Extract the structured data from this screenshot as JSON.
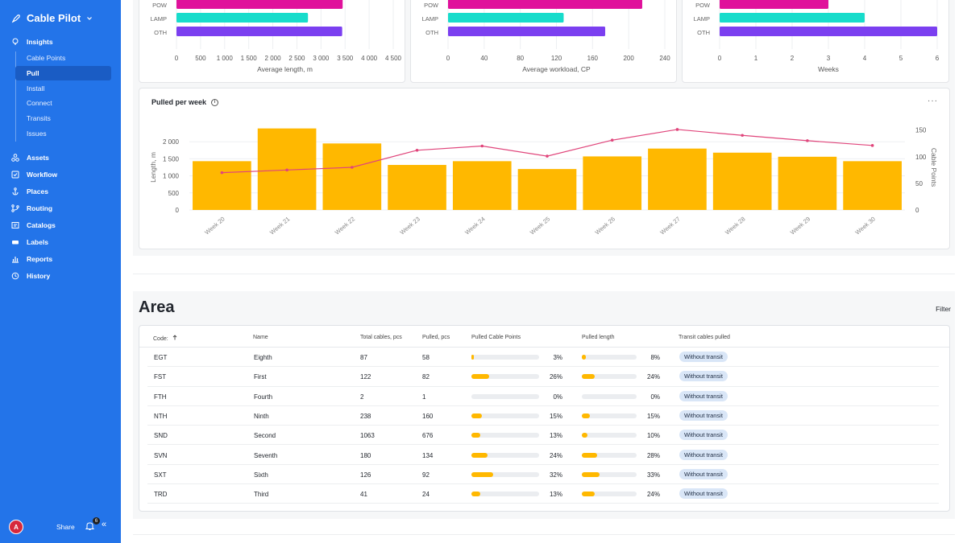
{
  "app": {
    "name": "Cable Pilot"
  },
  "sidebar": {
    "sections": [
      {
        "label": "Insights",
        "icon": "lightbulb-icon"
      },
      {
        "label": "Assets",
        "icon": "assets-icon"
      },
      {
        "label": "Workflow",
        "icon": "workflow-icon"
      },
      {
        "label": "Places",
        "icon": "anchor-icon"
      },
      {
        "label": "Routing",
        "icon": "routing-icon"
      },
      {
        "label": "Catalogs",
        "icon": "catalog-icon"
      },
      {
        "label": "Labels",
        "icon": "label-icon"
      },
      {
        "label": "Reports",
        "icon": "chart-icon"
      },
      {
        "label": "History",
        "icon": "clock-icon"
      }
    ],
    "insights_items": [
      {
        "label": "Cable Points"
      },
      {
        "label": "Pull",
        "active": true
      },
      {
        "label": "Install"
      },
      {
        "label": "Connect"
      },
      {
        "label": "Transits"
      },
      {
        "label": "Issues"
      }
    ],
    "footer": {
      "avatar": "A",
      "share": "Share",
      "notifications": "6"
    }
  },
  "top_charts": [
    {
      "xlabel": "Average length, m",
      "ticks": [
        "0",
        "500",
        "1 000",
        "1 500",
        "2 000",
        "2 500",
        "3 000",
        "3 500",
        "4 000",
        "4 500"
      ],
      "categories": [
        "POW",
        "LAMP",
        "OTH"
      ],
      "values": [
        3450,
        2730,
        3440
      ],
      "colors": [
        "#e0119b",
        "#17dccb",
        "#7b3ff0"
      ],
      "xlim": [
        0,
        4500
      ]
    },
    {
      "xlabel": "Average workload, CP",
      "ticks": [
        "0",
        "40",
        "80",
        "120",
        "160",
        "200",
        "240"
      ],
      "categories": [
        "POW",
        "LAMP",
        "OTH"
      ],
      "values": [
        215,
        128,
        174
      ],
      "colors": [
        "#e0119b",
        "#17dccb",
        "#7b3ff0"
      ],
      "xlim": [
        0,
        240
      ]
    },
    {
      "xlabel": "Weeks",
      "ticks": [
        "0",
        "1",
        "2",
        "3",
        "4",
        "5",
        "6"
      ],
      "categories": [
        "POW",
        "LAMP",
        "OTH"
      ],
      "values": [
        3,
        4,
        6
      ],
      "colors": [
        "#e0119b",
        "#17dccb",
        "#7b3ff0"
      ],
      "xlim": [
        0,
        6
      ]
    }
  ],
  "chart_data": {
    "type": "bar",
    "title": "Pulled per week",
    "categories": [
      "Week 20",
      "Week 21",
      "Week 22",
      "Week 23",
      "Week 24",
      "Week 25",
      "Week 26",
      "Week 27",
      "Week 28",
      "Week 29",
      "Week 30"
    ],
    "series": [
      {
        "type": "bar",
        "axis": "left",
        "color": "#ffb800",
        "values": [
          1430,
          2390,
          1950,
          1320,
          1430,
          1200,
          1570,
          1800,
          1680,
          1560,
          1430
        ]
      },
      {
        "type": "line",
        "axis": "right",
        "color": "#e0457b",
        "values": [
          70,
          75,
          80,
          112,
          120,
          101,
          131,
          151,
          140,
          130,
          121
        ]
      }
    ],
    "ylabel": "Length, m",
    "y2label": "Cable Points",
    "yticks": [
      "0",
      "500",
      "1 000",
      "1 500",
      "2 000"
    ],
    "y2ticks": [
      "0",
      "50",
      "100",
      "150"
    ],
    "ylim": [
      0,
      2500
    ],
    "y2lim": [
      0,
      160
    ]
  },
  "area": {
    "title": "Area",
    "filter": "Filter",
    "columns": [
      "Code:",
      "Name",
      "Total cables, pcs",
      "Pulled, pcs",
      "Pulled Cable Points",
      "Pulled length",
      "Transit cables pulled"
    ],
    "sort_icon": "sort-ascending-icon",
    "rows": [
      {
        "code": "EGT",
        "name": "Eighth",
        "total": "87",
        "pulled": "58",
        "cp_pct": "3%",
        "cp_frac": 0.03,
        "len_pct": "8%",
        "len_frac": 0.08,
        "transit": "Without transit"
      },
      {
        "code": "FST",
        "name": "First",
        "total": "122",
        "pulled": "82",
        "cp_pct": "26%",
        "cp_frac": 0.26,
        "len_pct": "24%",
        "len_frac": 0.24,
        "transit": "Without transit"
      },
      {
        "code": "FTH",
        "name": "Fourth",
        "total": "2",
        "pulled": "1",
        "cp_pct": "0%",
        "cp_frac": 0.0,
        "len_pct": "0%",
        "len_frac": 0.0,
        "transit": "Without transit"
      },
      {
        "code": "NTH",
        "name": "Ninth",
        "total": "238",
        "pulled": "160",
        "cp_pct": "15%",
        "cp_frac": 0.15,
        "len_pct": "15%",
        "len_frac": 0.15,
        "transit": "Without transit"
      },
      {
        "code": "SND",
        "name": "Second",
        "total": "1063",
        "pulled": "676",
        "cp_pct": "13%",
        "cp_frac": 0.13,
        "len_pct": "10%",
        "len_frac": 0.1,
        "transit": "Without transit"
      },
      {
        "code": "SVN",
        "name": "Seventh",
        "total": "180",
        "pulled": "134",
        "cp_pct": "24%",
        "cp_frac": 0.24,
        "len_pct": "28%",
        "len_frac": 0.28,
        "transit": "Without transit"
      },
      {
        "code": "SXT",
        "name": "Sixth",
        "total": "126",
        "pulled": "92",
        "cp_pct": "32%",
        "cp_frac": 0.32,
        "len_pct": "33%",
        "len_frac": 0.33,
        "transit": "Without transit"
      },
      {
        "code": "TRD",
        "name": "Third",
        "total": "41",
        "pulled": "24",
        "cp_pct": "13%",
        "cp_frac": 0.13,
        "len_pct": "24%",
        "len_frac": 0.24,
        "transit": "Without transit"
      }
    ]
  }
}
